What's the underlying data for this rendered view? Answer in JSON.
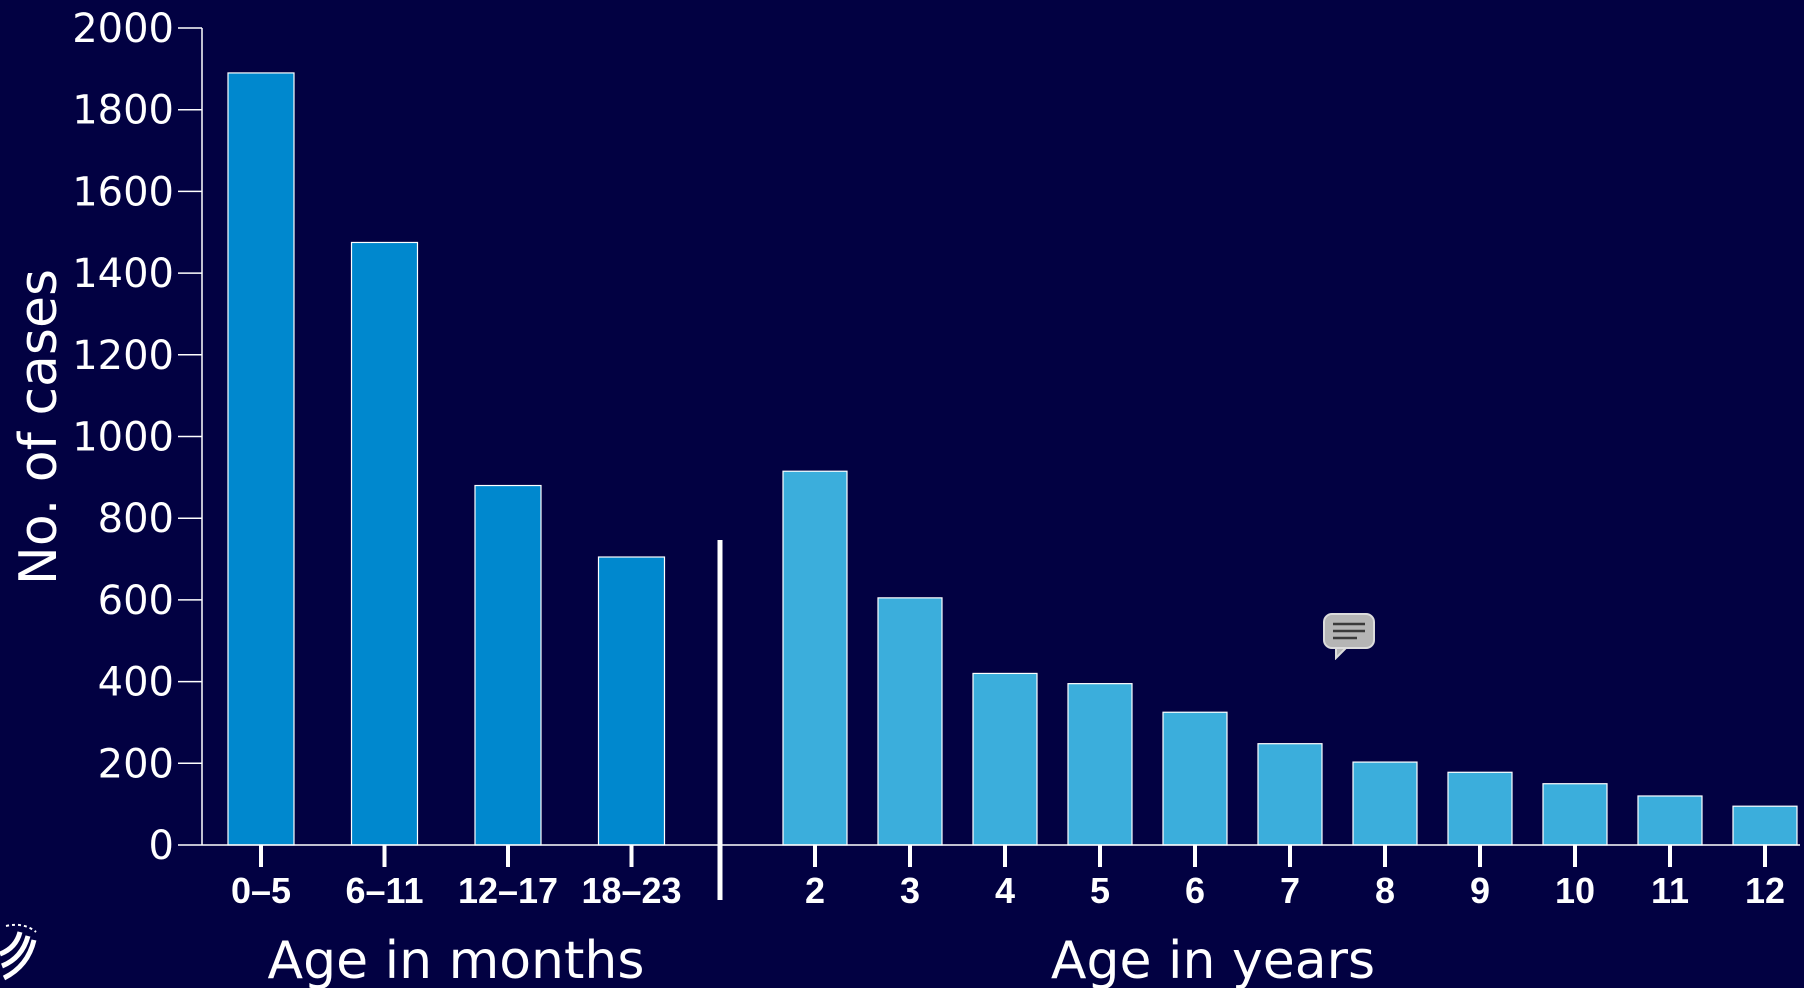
{
  "chart_data": {
    "type": "bar",
    "ylabel": "No. of cases",
    "ylim": [
      0,
      2000
    ],
    "yticks": [
      0,
      200,
      400,
      600,
      800,
      1000,
      1200,
      1400,
      1600,
      1800,
      2000
    ],
    "groups": [
      {
        "xlabel": "Age in months",
        "color": "#0088CE",
        "categories": [
          "0–5",
          "6–11",
          "12–17",
          "18–23"
        ],
        "values": [
          1890,
          1475,
          880,
          705
        ]
      },
      {
        "xlabel": "Age in years",
        "color": "#3BAEDC",
        "categories": [
          "2",
          "3",
          "4",
          "5",
          "6",
          "7",
          "8",
          "9",
          "10",
          "11",
          "12"
        ],
        "values": [
          915,
          605,
          420,
          395,
          325,
          248,
          203,
          178,
          150,
          120,
          95
        ]
      }
    ],
    "grid": false,
    "legend": "none"
  },
  "icons": {
    "comment": "comment-icon",
    "logo": "seal-logo-icon"
  }
}
